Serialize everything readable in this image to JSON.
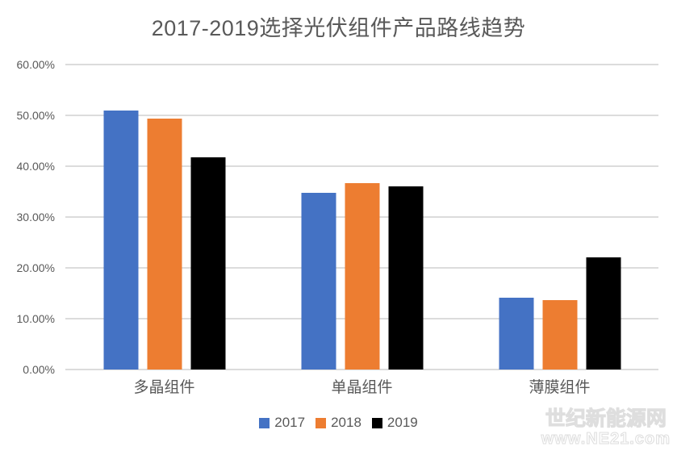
{
  "chart_data": {
    "type": "bar",
    "title": "2017-2019选择光伏组件产品路线趋势",
    "categories": [
      "多晶组件",
      "单晶组件",
      "薄膜组件"
    ],
    "series": [
      {
        "name": "2017",
        "color": "#4472C4",
        "values": [
          51.0,
          34.7,
          14.1
        ]
      },
      {
        "name": "2018",
        "color": "#ED7D31",
        "values": [
          49.4,
          36.7,
          13.6
        ]
      },
      {
        "name": "2019",
        "color": "#000000",
        "values": [
          41.7,
          36.1,
          22.0
        ]
      }
    ],
    "unit": "%",
    "ylim": [
      0,
      60
    ],
    "ytick_step": 10,
    "ytick_labels": [
      "0.00%",
      "10.00%",
      "20.00%",
      "30.00%",
      "40.00%",
      "50.00%",
      "60.00%"
    ],
    "grid": true,
    "legend_position": "bottom"
  },
  "watermark": {
    "line1": "世纪新能源网",
    "line2": "www.NE21.com"
  },
  "style": {
    "gridline_color": "#dcdcdc",
    "text_color": "#595959",
    "background": "#ffffff"
  }
}
